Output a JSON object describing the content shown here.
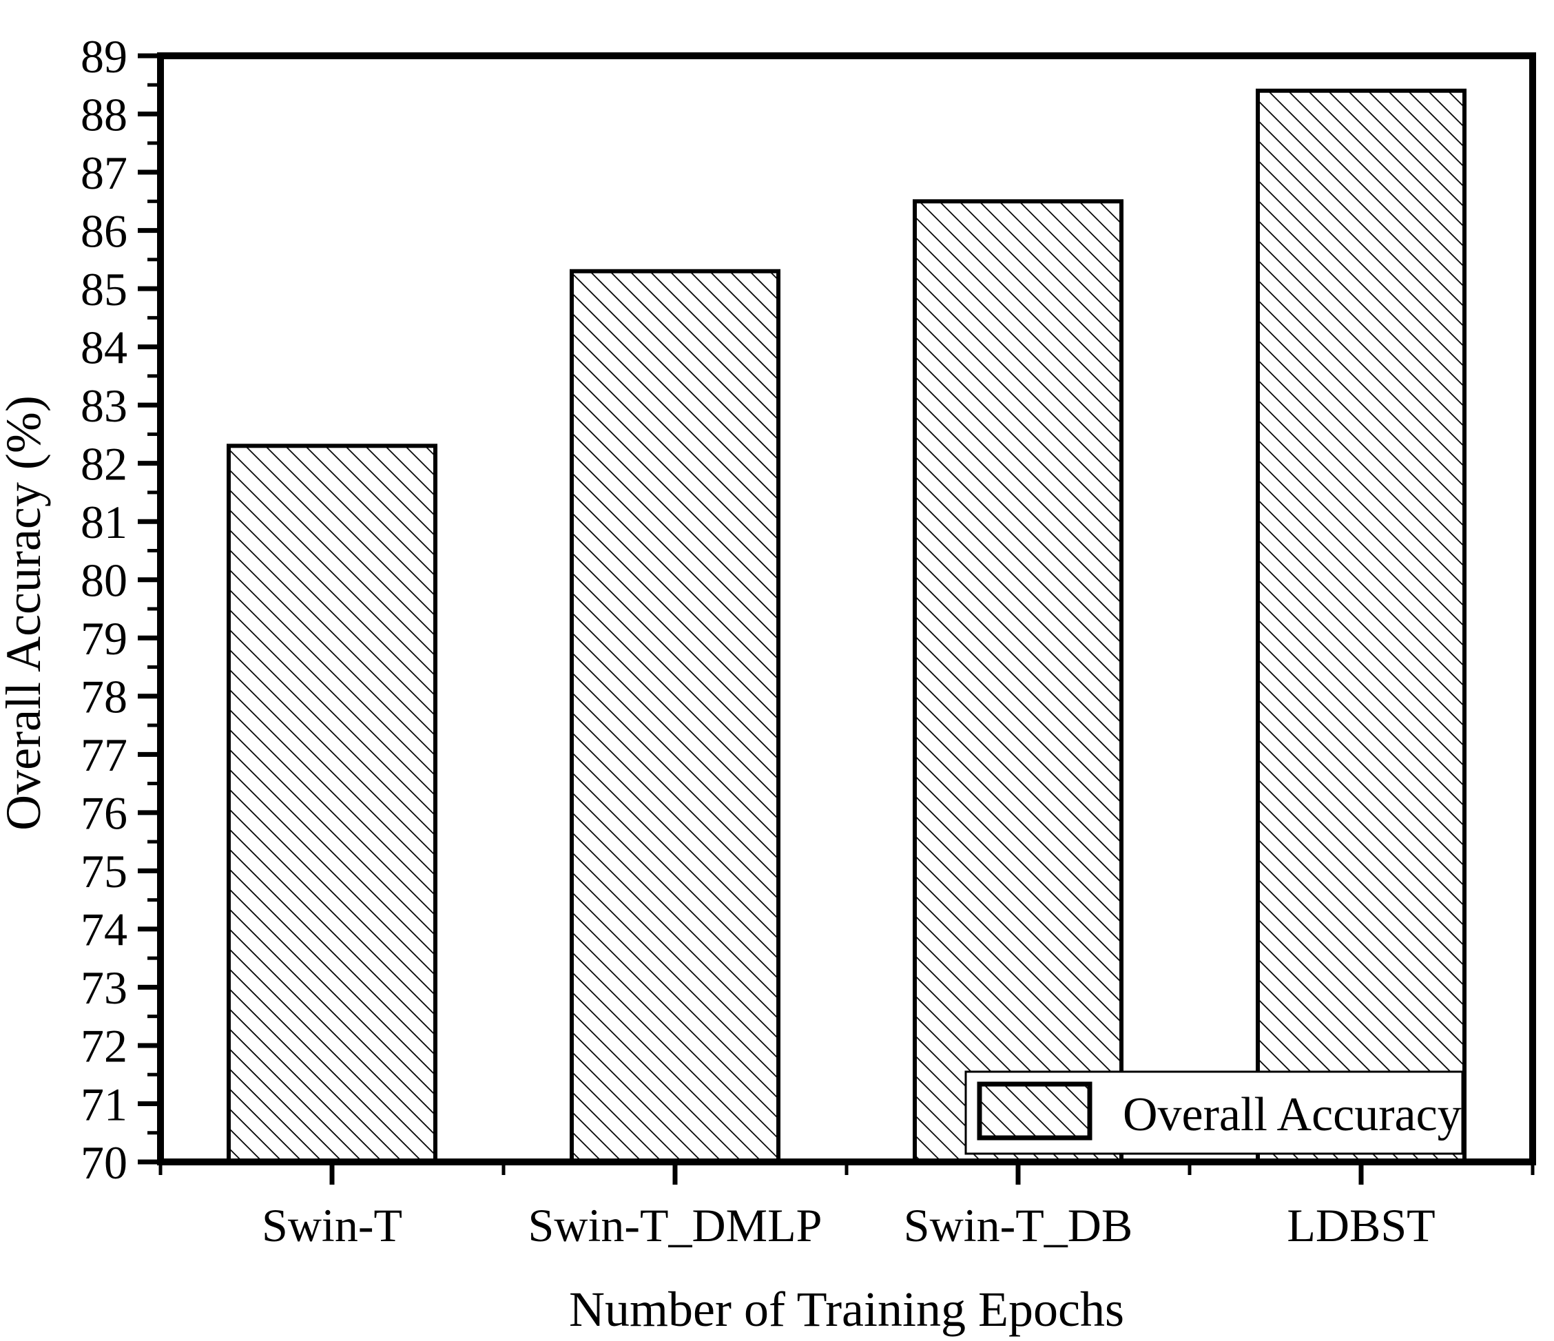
{
  "colors": {
    "ink": "#000000",
    "background": "#ffffff"
  },
  "chart_data": {
    "type": "bar",
    "title": "",
    "categories": [
      "Swin-T",
      "Swin-T_DMLP",
      "Swin-T_DB",
      "LDBST"
    ],
    "series": [
      {
        "name": "Overall Accuracy",
        "values": [
          82.3,
          85.3,
          86.5,
          88.4
        ]
      }
    ],
    "xlabel": "Number of Training Epochs",
    "ylabel": "Overall Accuracy (%)",
    "ylim": [
      70,
      89
    ],
    "y_major_step": 1,
    "y_minor_step": 0.5,
    "y_tick_labels": [
      "70",
      "71",
      "72",
      "73",
      "74",
      "75",
      "76",
      "77",
      "78",
      "79",
      "80",
      "81",
      "82",
      "83",
      "84",
      "85",
      "86",
      "87",
      "88",
      "89"
    ],
    "grid": false,
    "bar_style": {
      "fill": "diagonal-hatch",
      "hatch_direction": "\\",
      "outline": "#000000",
      "interior": "#ffffff"
    },
    "legend": {
      "label": "Overall Accuracy",
      "position": "bottom-right",
      "swatch": "diagonal-hatch"
    }
  }
}
